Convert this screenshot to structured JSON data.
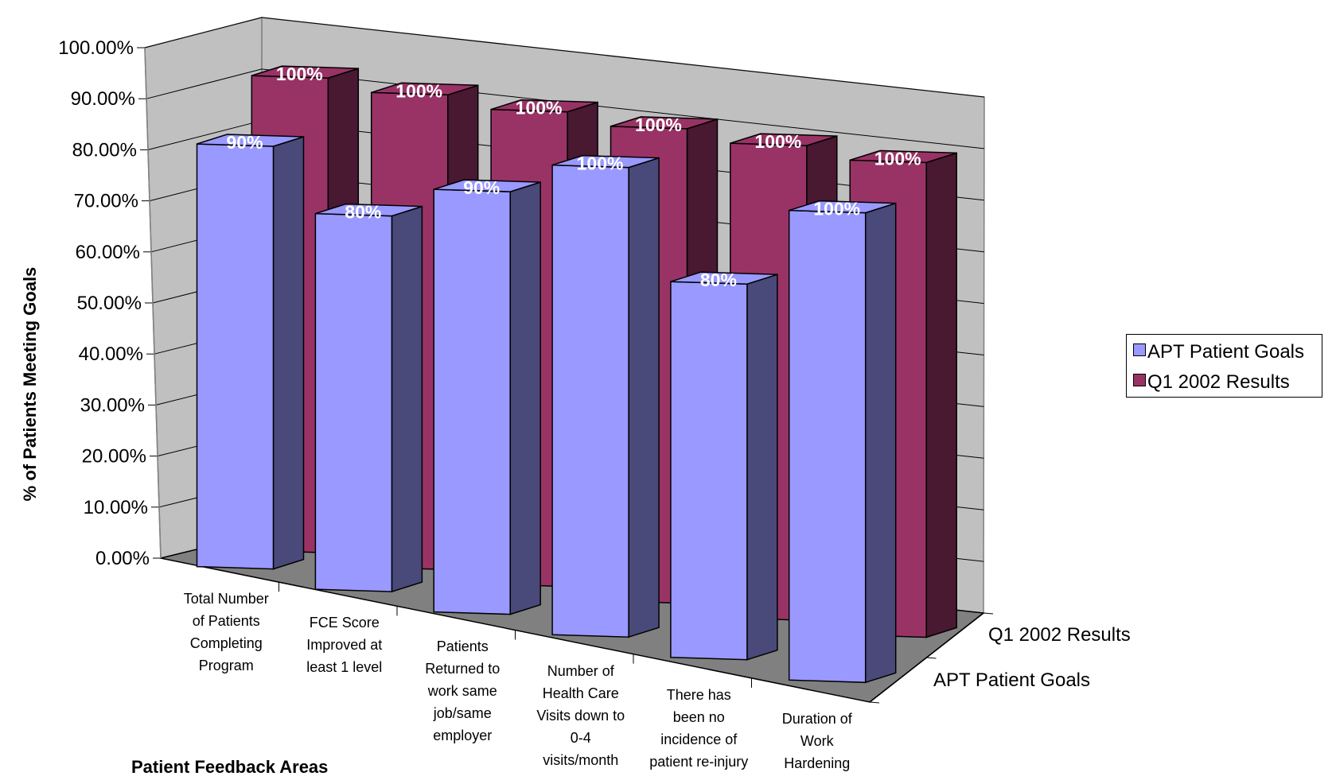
{
  "chart_data": {
    "type": "bar",
    "ylabel": "% of Patients Meeting Goals",
    "xlabel": "Patient Feedback Areas",
    "ylim": [
      0,
      100
    ],
    "yticks": [
      "0.00%",
      "10.00%",
      "20.00%",
      "30.00%",
      "40.00%",
      "50.00%",
      "60.00%",
      "70.00%",
      "80.00%",
      "90.00%",
      "100.00%"
    ],
    "categories": [
      "Total Number of Patients Completing Program",
      "FCE Score Improved at least 1 level",
      "Patients Returned to work same job/same employer",
      "Number of Health Care Visits down to 0-4 visits/month",
      "There has been no incidence of patient re-injury",
      "Duration of Work Hardening"
    ],
    "category_lines": [
      [
        "Total Number",
        "of Patients",
        "Completing",
        "Program"
      ],
      [
        "FCE Score",
        "Improved at",
        "least 1 level"
      ],
      [
        "Patients",
        "Returned to",
        "work same",
        "job/same",
        "employer"
      ],
      [
        "Number of",
        "Health Care",
        "Visits down to",
        "0-4",
        "visits/month"
      ],
      [
        "There has",
        "been no",
        "incidence of",
        "patient re-injury"
      ],
      [
        "Duration of",
        "Work",
        "Hardening"
      ]
    ],
    "series": [
      {
        "name": "APT Patient Goals",
        "values": [
          90,
          80,
          90,
          100,
          80,
          100
        ],
        "labels": [
          "90%",
          "80%",
          "90%",
          "100%",
          "80%",
          "100%"
        ],
        "color": "#9999ff"
      },
      {
        "name": "Q1 2002 Results",
        "values": [
          100,
          100,
          100,
          100,
          100,
          100
        ],
        "labels": [
          "100%",
          "100%",
          "100%",
          "100%",
          "100%",
          "100%"
        ],
        "color": "#993366"
      }
    ],
    "legend": {
      "position": "right",
      "items": [
        "APT Patient Goals",
        "Q1 2002 Results"
      ]
    },
    "depth_labels": [
      "Q1 2002 Results",
      "APT Patient Goals"
    ],
    "grid": true,
    "chart_style": "3d-column"
  }
}
